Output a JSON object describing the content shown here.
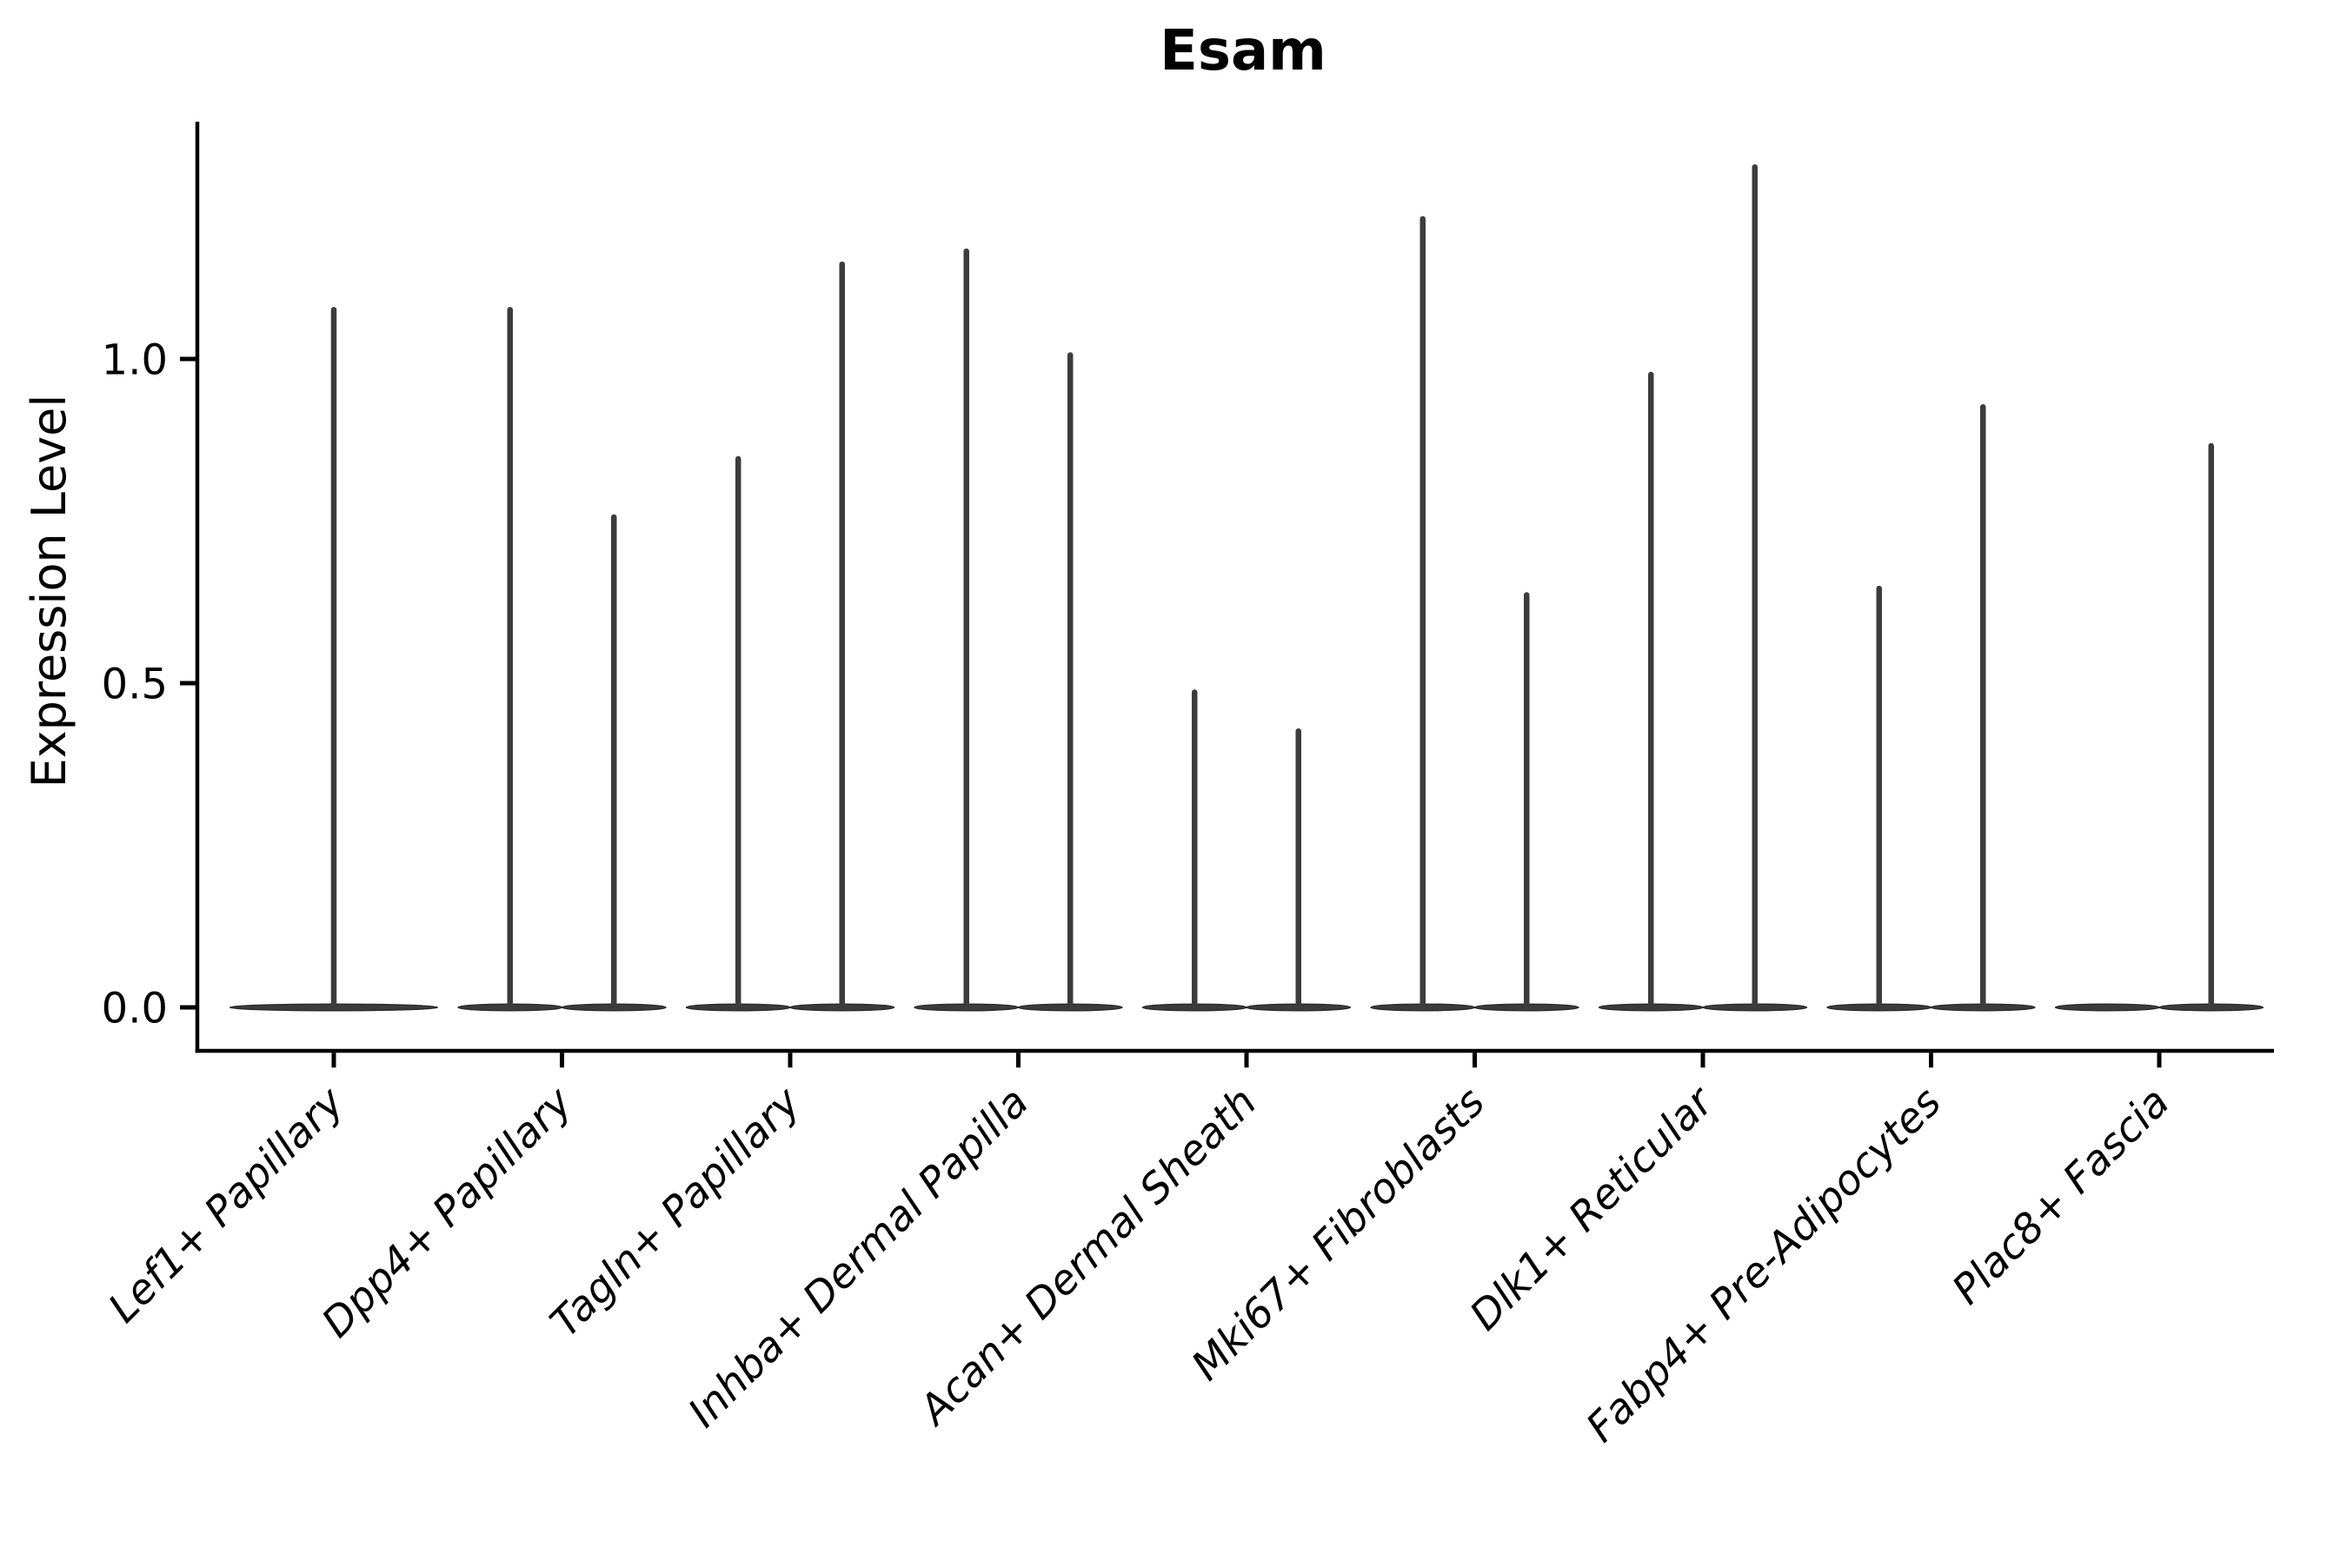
{
  "chart_data": {
    "type": "violin",
    "title": "Esam",
    "ylabel": "Expression Level",
    "xlabel": "",
    "yticks": [
      0.0,
      0.5,
      1.0
    ],
    "ytick_labels": [
      "0.0",
      "0.5",
      "1.0"
    ],
    "ylim": [
      -0.07,
      1.37
    ],
    "grid": false,
    "legend": null,
    "x_label_rotation_deg": 45,
    "categories": [
      "Lef1+ Papillary",
      "Dpp4+ Papillary",
      "Tagln+ Papillary",
      "Inhba+ Dermal Papilla",
      "Acan+ Dermal Sheath",
      "Mki67+ Fibroblasts",
      "Dlk1+ Reticular",
      "Fabp4+ Pre-Adipocytes",
      "Plac8+ Fascia"
    ],
    "violins": [
      {
        "category": "Lef1+ Papillary",
        "slot": "full",
        "max_expression": 1.08
      },
      {
        "category": "Dpp4+ Papillary",
        "slot": "left",
        "max_expression": 1.08
      },
      {
        "category": "Dpp4+ Papillary",
        "slot": "right",
        "max_expression": 0.76
      },
      {
        "category": "Tagln+ Papillary",
        "slot": "left",
        "max_expression": 0.85
      },
      {
        "category": "Tagln+ Papillary",
        "slot": "right",
        "max_expression": 1.15
      },
      {
        "category": "Inhba+ Dermal Papilla",
        "slot": "left",
        "max_expression": 1.17
      },
      {
        "category": "Inhba+ Dermal Papilla",
        "slot": "right",
        "max_expression": 1.01
      },
      {
        "category": "Acan+ Dermal Sheath",
        "slot": "left",
        "max_expression": 0.49
      },
      {
        "category": "Acan+ Dermal Sheath",
        "slot": "right",
        "max_expression": 0.43
      },
      {
        "category": "Mki67+ Fibroblasts",
        "slot": "left",
        "max_expression": 1.22
      },
      {
        "category": "Mki67+ Fibroblasts",
        "slot": "right",
        "max_expression": 0.64
      },
      {
        "category": "Dlk1+ Reticular",
        "slot": "left",
        "max_expression": 0.98
      },
      {
        "category": "Dlk1+ Reticular",
        "slot": "right",
        "max_expression": 1.3
      },
      {
        "category": "Fabp4+ Pre-Adipocytes",
        "slot": "left",
        "max_expression": 0.65
      },
      {
        "category": "Fabp4+ Pre-Adipocytes",
        "slot": "right",
        "max_expression": 0.93
      },
      {
        "category": "Plac8+ Fascia",
        "slot": "left",
        "max_expression": 0.0
      },
      {
        "category": "Plac8+ Fascia",
        "slot": "right",
        "max_expression": 0.87
      }
    ],
    "colors": {
      "violin_fill": "#3c3c3c",
      "violin_edge": "#2b2b2b",
      "axis": "#000000",
      "text": "#000000",
      "background": "#ffffff"
    }
  }
}
